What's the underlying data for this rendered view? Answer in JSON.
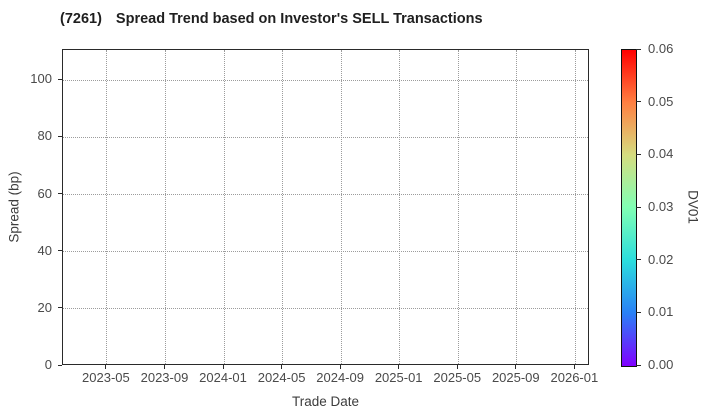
{
  "title": {
    "ticker": "(7261)",
    "text": "Spread Trend based on Investor's SELL Transactions"
  },
  "chart_data": {
    "type": "scatter",
    "title": "(7261)  Spread Trend based on Investor's SELL Transactions",
    "xlabel": "Trade Date",
    "ylabel": "Spread (bp)",
    "x_ticks": [
      "2023-05",
      "2023-09",
      "2024-01",
      "2024-05",
      "2024-09",
      "2025-01",
      "2025-05",
      "2025-09",
      "2026-01"
    ],
    "xlim_months": [
      "2023-02",
      "2026-02"
    ],
    "y_ticks": [
      0,
      20,
      40,
      60,
      80,
      100
    ],
    "ylim": [
      0,
      110.6
    ],
    "grid": true,
    "grid_style": "dotted",
    "series": [],
    "colorbar": {
      "label": "DV01",
      "ticks": [
        "0.00",
        "0.01",
        "0.02",
        "0.03",
        "0.04",
        "0.05",
        "0.06"
      ],
      "range": [
        0.0,
        0.06
      ],
      "colormap": "rainbow",
      "gradient_stops_bottom_to_top": [
        "#8000ff",
        "#2a80f6",
        "#2bdddd",
        "#80ffb4",
        "#d5dd80",
        "#ff8042",
        "#ff0000"
      ]
    }
  },
  "colors": {
    "background": "#ffffff",
    "spine": "#2a2a2a",
    "grid": "#9c9c9c",
    "tick_label": "#4a4a4a",
    "axis_label": "#3d3d3d",
    "title": "#1f1f1f"
  }
}
